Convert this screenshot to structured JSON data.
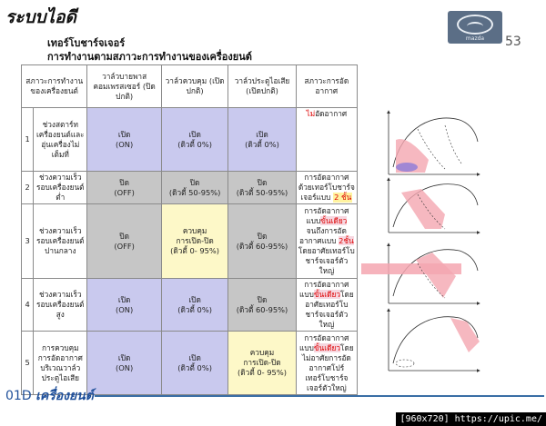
{
  "header": {
    "title": "ระบบไอดี",
    "page_number": "53",
    "logo_text": "mazda"
  },
  "subtitle1": "เทอร์โบชาร์จเจอร์",
  "subtitle2": "การทำงานตามสภาวะการทำงานของเครื่องยนต์",
  "table": {
    "headers": [
      "สภาวะการทำงานของเครื่องยนต์",
      "วาล์วบายพาสคอมเพรสเซอร์ (ปิดปกติ)",
      "วาล์วควบคุม (เปิดปกติ)",
      "วาล์วประตูไอเสีย (เปิดปกติ)",
      "สภาวะการอัดอากาศ"
    ],
    "rows": [
      {
        "num": "1",
        "cond": "ช่วงสตาร์ทเครื่องยนต์และอุ่นเครื่องไม่เต็มที่",
        "c1a": "เปิด",
        "c1b": "(ON)",
        "c2a": "เปิด",
        "c2b": "(ดิวตี้ 0%)",
        "c3a": "เปิด",
        "c3b": "(ดิวตี้ 0%)",
        "d1": "ไม่",
        "d2": "อัดอากาศ"
      },
      {
        "num": "2",
        "cond": "ช่วงความเร็วรอบเครื่องยนต์ต่ำ",
        "c1a": "ปิด",
        "c1b": "(OFF)",
        "c2a": "ปิด",
        "c2b": "(ดิวตี้ 50-95%)",
        "c3a": "ปิด",
        "c3b": "(ดิวตี้ 50-95%)",
        "d1": "การอัดอากาศด้วยเทอร์โบชาร์จเจอร์แบบ",
        "d2": "2 ชั้น"
      },
      {
        "num": "3",
        "cond": "ช่วงความเร็วรอบเครื่องยนต์ปานกลาง",
        "c1a": "ปิด",
        "c1b": "(OFF)",
        "c2a": "ควบคุม",
        "c2b": "การเปิด-ปิด",
        "c2c": "(ดิวตี้ 0- 95%)",
        "c3a": "ปิด",
        "c3b": "(ดิวตี้ 60-95%)",
        "d1": "การอัดอากาศแบบ",
        "d2": "ขั้นเดียว",
        "d3": "จนถึงการอัดอากาศแบบ",
        "d4": "2ชั้น",
        "d5": "โดยอาศัยเทอร์โบชาร์จเจอร์ตัวใหญ่"
      },
      {
        "num": "4",
        "cond": "ช่วงความเร็วรอบเครื่องยนต์สูง",
        "c1a": "เปิด",
        "c1b": "(ON)",
        "c2a": "เปิด",
        "c2b": "(ดิวตี้ 0%)",
        "c3a": "ปิด",
        "c3b": "(ดิวตี้ 60-95%)",
        "d1": "การอัดอากาศแบบ",
        "d2": "ขั้นเดียว",
        "d3": "โดยอาศัยเทอร์โบชาร์จเจอร์ตัวใหญ่"
      },
      {
        "num": "5",
        "cond": "การควบคุมการอัดอากาศบริเวณวาล์วประตูไอเสีย",
        "c1a": "เปิด",
        "c1b": "(ON)",
        "c2a": "เปิด",
        "c2b": "(ดิวตี้ 0%)",
        "c3a": "ควบคุม",
        "c3b": "การเปิด-ปิด",
        "c3c": "(ดิวตี้ 0- 95%)",
        "d1": "การอัดอากาศแบบ",
        "d2": "ขั้นเดียว",
        "d3": "โดยไม่อาศัยการอัดอากาศโปร์เทอร์โบชาร์จเจอร์ตัวใหญ่"
      }
    ]
  },
  "footer": {
    "code": "01D",
    "label": "เครื่องยนต์"
  },
  "watermark": "[960x720] https://upic.me/",
  "colors": {
    "purple": "#c9c9ee",
    "gray": "#c6c6c6",
    "yellow": "#fdf8c8",
    "footer_blue": "#1e4f9a"
  }
}
